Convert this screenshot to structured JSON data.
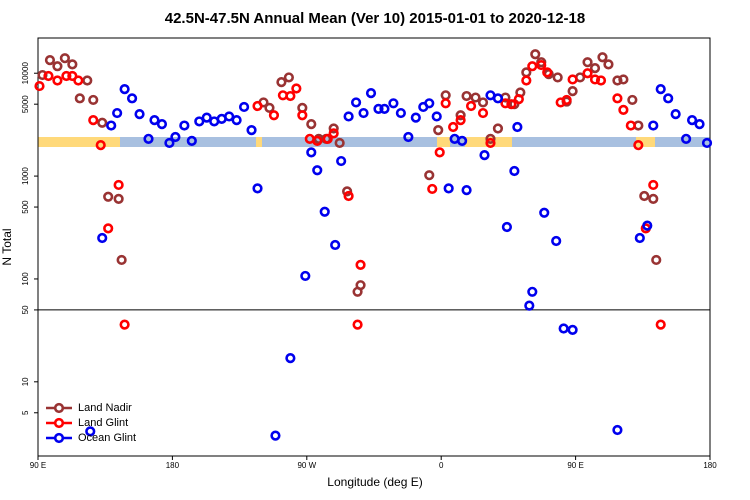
{
  "chart_data": {
    "type": "scatter",
    "title": "42.5N-47.5N Annual Mean (Ver 10)   2015-01-01 to 2020-12-18",
    "x_label": "Longitude (deg E)",
    "y_label": "N Total",
    "log_y": true,
    "reference_line": 50,
    "legend": "bottom-left",
    "xlim": [
      90,
      540
    ],
    "xticks": [
      {
        "value": 90,
        "label": "90 E"
      },
      180,
      {
        "value": 270,
        "label": "90 W"
      },
      {
        "value": 360,
        "label": "0"
      },
      {
        "value": 450,
        "label": "90 E"
      },
      {
        "value": 540,
        "label": "180"
      }
    ],
    "ylim": [
      1.9,
      22000
    ],
    "yticks": [
      5,
      10,
      50,
      100,
      500,
      1000,
      5000,
      10000
    ],
    "series": [
      {
        "name": "Land Nadir",
        "color": "#993333",
        "x": [
          93,
          98,
          103,
          108,
          113,
          118,
          123,
          127,
          133,
          137,
          144,
          146,
          241,
          245,
          253,
          258,
          267,
          273,
          278,
          283,
          288,
          292,
          297,
          304,
          306,
          352,
          358,
          363,
          373,
          377,
          383,
          388,
          393,
          398,
          403,
          409,
          413,
          417,
          423,
          427,
          432,
          438,
          444,
          448,
          453,
          458,
          463,
          468,
          472,
          478,
          482,
          488,
          492,
          496,
          502,
          504
        ],
        "values": [
          9600,
          13400,
          11700,
          14000,
          12200,
          5700,
          8500,
          5500,
          3300,
          630,
          600,
          153,
          5200,
          4600,
          8200,
          9100,
          4600,
          3200,
          2300,
          2300,
          2900,
          2100,
          710,
          75,
          87,
          1020,
          2800,
          6100,
          3900,
          6000,
          5800,
          5200,
          2300,
          2900,
          5800,
          5000,
          6500,
          10200,
          15300,
          12800,
          9800,
          9100,
          5300,
          6700,
          9100,
          12800,
          11200,
          14300,
          12200,
          8500,
          8700,
          5500,
          3100,
          640,
          600,
          153
        ]
      },
      {
        "name": "Land Glint",
        "color": "#ff0000",
        "x": [
          91,
          97,
          103,
          109,
          113,
          117,
          127,
          132,
          137,
          144,
          148,
          237,
          248,
          254,
          259,
          263,
          267,
          272,
          277,
          284,
          288,
          298,
          304,
          306,
          354,
          359,
          363,
          368,
          373,
          380,
          388,
          393,
          403,
          407,
          412,
          417,
          421,
          427,
          431,
          440,
          444,
          448,
          458,
          463,
          467,
          478,
          482,
          487,
          492,
          497,
          502,
          507
        ],
        "values": [
          7500,
          9400,
          8500,
          9400,
          9400,
          8500,
          3500,
          2000,
          310,
          820,
          36,
          4800,
          3900,
          6100,
          6000,
          7100,
          3900,
          2300,
          2200,
          2300,
          2600,
          640,
          36,
          137,
          750,
          1700,
          5100,
          3000,
          3500,
          4800,
          4100,
          2100,
          5100,
          5000,
          5600,
          8500,
          11700,
          12000,
          10200,
          5200,
          5500,
          8700,
          10000,
          8700,
          8500,
          5700,
          4400,
          3100,
          2000,
          310,
          820,
          36
        ]
      },
      {
        "name": "Ocean Glint",
        "color": "#0000ee",
        "x": [
          125,
          133,
          139,
          143,
          148,
          153,
          158,
          164,
          168,
          173,
          178,
          182,
          188,
          193,
          198,
          203,
          208,
          213,
          218,
          223,
          228,
          233,
          237,
          249,
          259,
          269,
          273,
          277,
          282,
          289,
          293,
          298,
          303,
          308,
          313,
          318,
          322,
          328,
          333,
          338,
          343,
          348,
          352,
          357,
          365,
          369,
          374,
          377,
          389,
          393,
          398,
          404,
          409,
          411,
          419,
          421,
          429,
          437,
          442,
          448,
          478,
          493,
          498,
          502,
          507,
          512,
          517,
          524,
          528,
          533,
          538
        ],
        "values": [
          3.3,
          250,
          3100,
          4100,
          7000,
          5700,
          4000,
          2300,
          3500,
          3200,
          2100,
          2400,
          3100,
          2200,
          3400,
          3700,
          3400,
          3600,
          3800,
          3500,
          4700,
          2800,
          760,
          3.0,
          17,
          107,
          1700,
          1140,
          450,
          214,
          1400,
          3800,
          5200,
          4100,
          6400,
          4500,
          4500,
          5100,
          4100,
          2400,
          3700,
          4700,
          5100,
          3800,
          760,
          2300,
          2200,
          730,
          1600,
          6100,
          5700,
          320,
          1120,
          3000,
          55,
          75,
          440,
          234,
          33,
          32,
          3.4,
          250,
          330,
          3100,
          7000,
          5700,
          4000,
          2300,
          3500,
          3200,
          2100
        ]
      }
    ]
  }
}
